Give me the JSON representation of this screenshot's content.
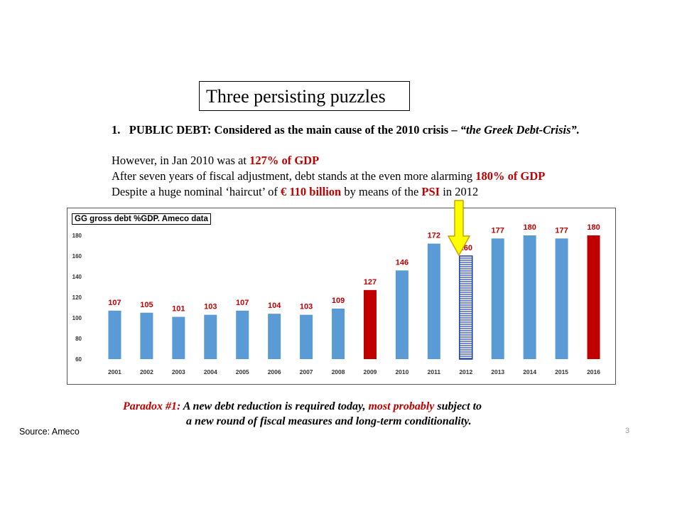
{
  "slide": {
    "title": "Three persisting  puzzles",
    "point_1": {
      "number": "1.",
      "text": "PUBLIC DEBT:  Considered as the main cause of the 2010 crisis – ",
      "quote": "“the Greek Debt-Crisis”."
    },
    "line_1": {
      "pre": "However, in Jan 2010 was at ",
      "red": "127% of GDP",
      "post": ""
    },
    "line_2": {
      "pre": "After seven years of fiscal adjustment, debt stands at the even more alarming ",
      "red": "180% of GDP",
      "post": ""
    },
    "line_3": {
      "pre": "Despite a huge nominal ‘haircut’ of ",
      "red": "€ 110 billion",
      "mid": " by means of the ",
      "red2": "PSI",
      "post": " in 2012"
    },
    "paradox": {
      "label": "Paradox #1:",
      "text1": " A new debt reduction is required  today, ",
      "red": "most probably",
      "text2": " subject to",
      "line2": "a new round of fiscal measures and long-term conditionality."
    },
    "source": "Source: Ameco",
    "page_number": "3",
    "colors": {
      "accent_red": "#c00000",
      "bar_blue": "#5b9bd5",
      "arrow_yellow": "#ffff00"
    }
  },
  "chart_data": {
    "type": "bar",
    "title": "GG gross debt %GDP. Ameco data",
    "categories": [
      "2001",
      "2002",
      "2003",
      "2004",
      "2005",
      "2006",
      "2007",
      "2008",
      "2009",
      "2010",
      "2011",
      "2012",
      "2013",
      "2014",
      "2015",
      "2016"
    ],
    "values": [
      107,
      105,
      101,
      103,
      107,
      104,
      103,
      109,
      127,
      146,
      172,
      160,
      177,
      180,
      177,
      180
    ],
    "ylim": [
      60,
      180
    ],
    "yticks": [
      60,
      80,
      100,
      120,
      140,
      160,
      180
    ],
    "grid": false,
    "highlight_red": [
      "2009",
      "2016"
    ],
    "highlight_hatched": [
      "2012"
    ],
    "arrow_to": "2012"
  }
}
